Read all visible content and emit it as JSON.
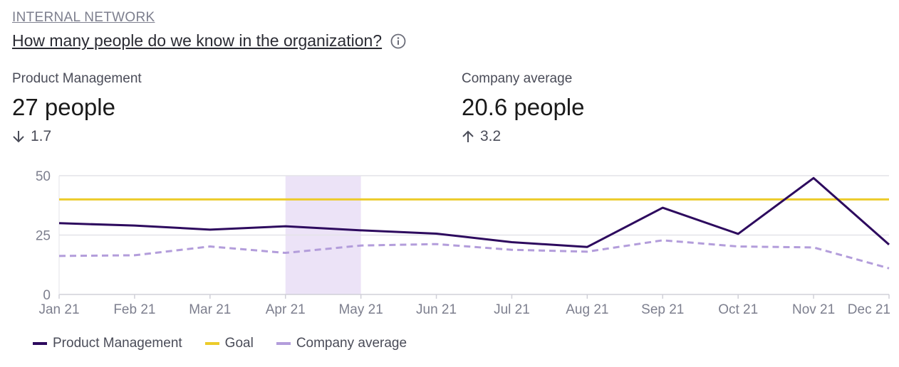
{
  "header": {
    "section_label": "INTERNAL NETWORK",
    "question": "How many people do we know in the organization?",
    "info_icon": "info-icon"
  },
  "stats": [
    {
      "label": "Product Management",
      "value": "27 people",
      "delta_direction": "down",
      "delta": "1.7"
    },
    {
      "label": "Company average",
      "value": "20.6 people",
      "delta_direction": "up",
      "delta": "3.2"
    }
  ],
  "chart_data": {
    "type": "line",
    "categories": [
      "Jan 21",
      "Feb 21",
      "Mar 21",
      "Apr 21",
      "May 21",
      "Jun 21",
      "Jul 21",
      "Aug 21",
      "Sep 21",
      "Oct 21",
      "Nov 21",
      "Dec 21"
    ],
    "ylim": [
      0,
      50
    ],
    "yticks": [
      "0",
      "25",
      "50"
    ],
    "highlight_range": [
      "Apr 21",
      "May 21"
    ],
    "series": [
      {
        "name": "Product Management",
        "color": "#2d0a5e",
        "style": "solid",
        "values": [
          30,
          29,
          27.3,
          28.7,
          27,
          25.6,
          22,
          20,
          36.5,
          25.5,
          49,
          21
        ]
      },
      {
        "name": "Goal",
        "color": "#eccb2a",
        "style": "solid",
        "values": [
          40,
          40,
          40,
          40,
          40,
          40,
          40,
          40,
          40,
          40,
          40,
          40
        ]
      },
      {
        "name": "Company average",
        "color": "#b39ddb",
        "style": "dashed",
        "values": [
          16.2,
          16.5,
          20.2,
          17.5,
          20.6,
          21.2,
          18.8,
          18,
          22.8,
          20.2,
          19.8,
          11
        ]
      }
    ],
    "legend_position": "bottom-left"
  },
  "colors": {
    "highlight": "#ece3f7",
    "grid": "#e3e3e8",
    "axis": "#d0d0d8"
  }
}
